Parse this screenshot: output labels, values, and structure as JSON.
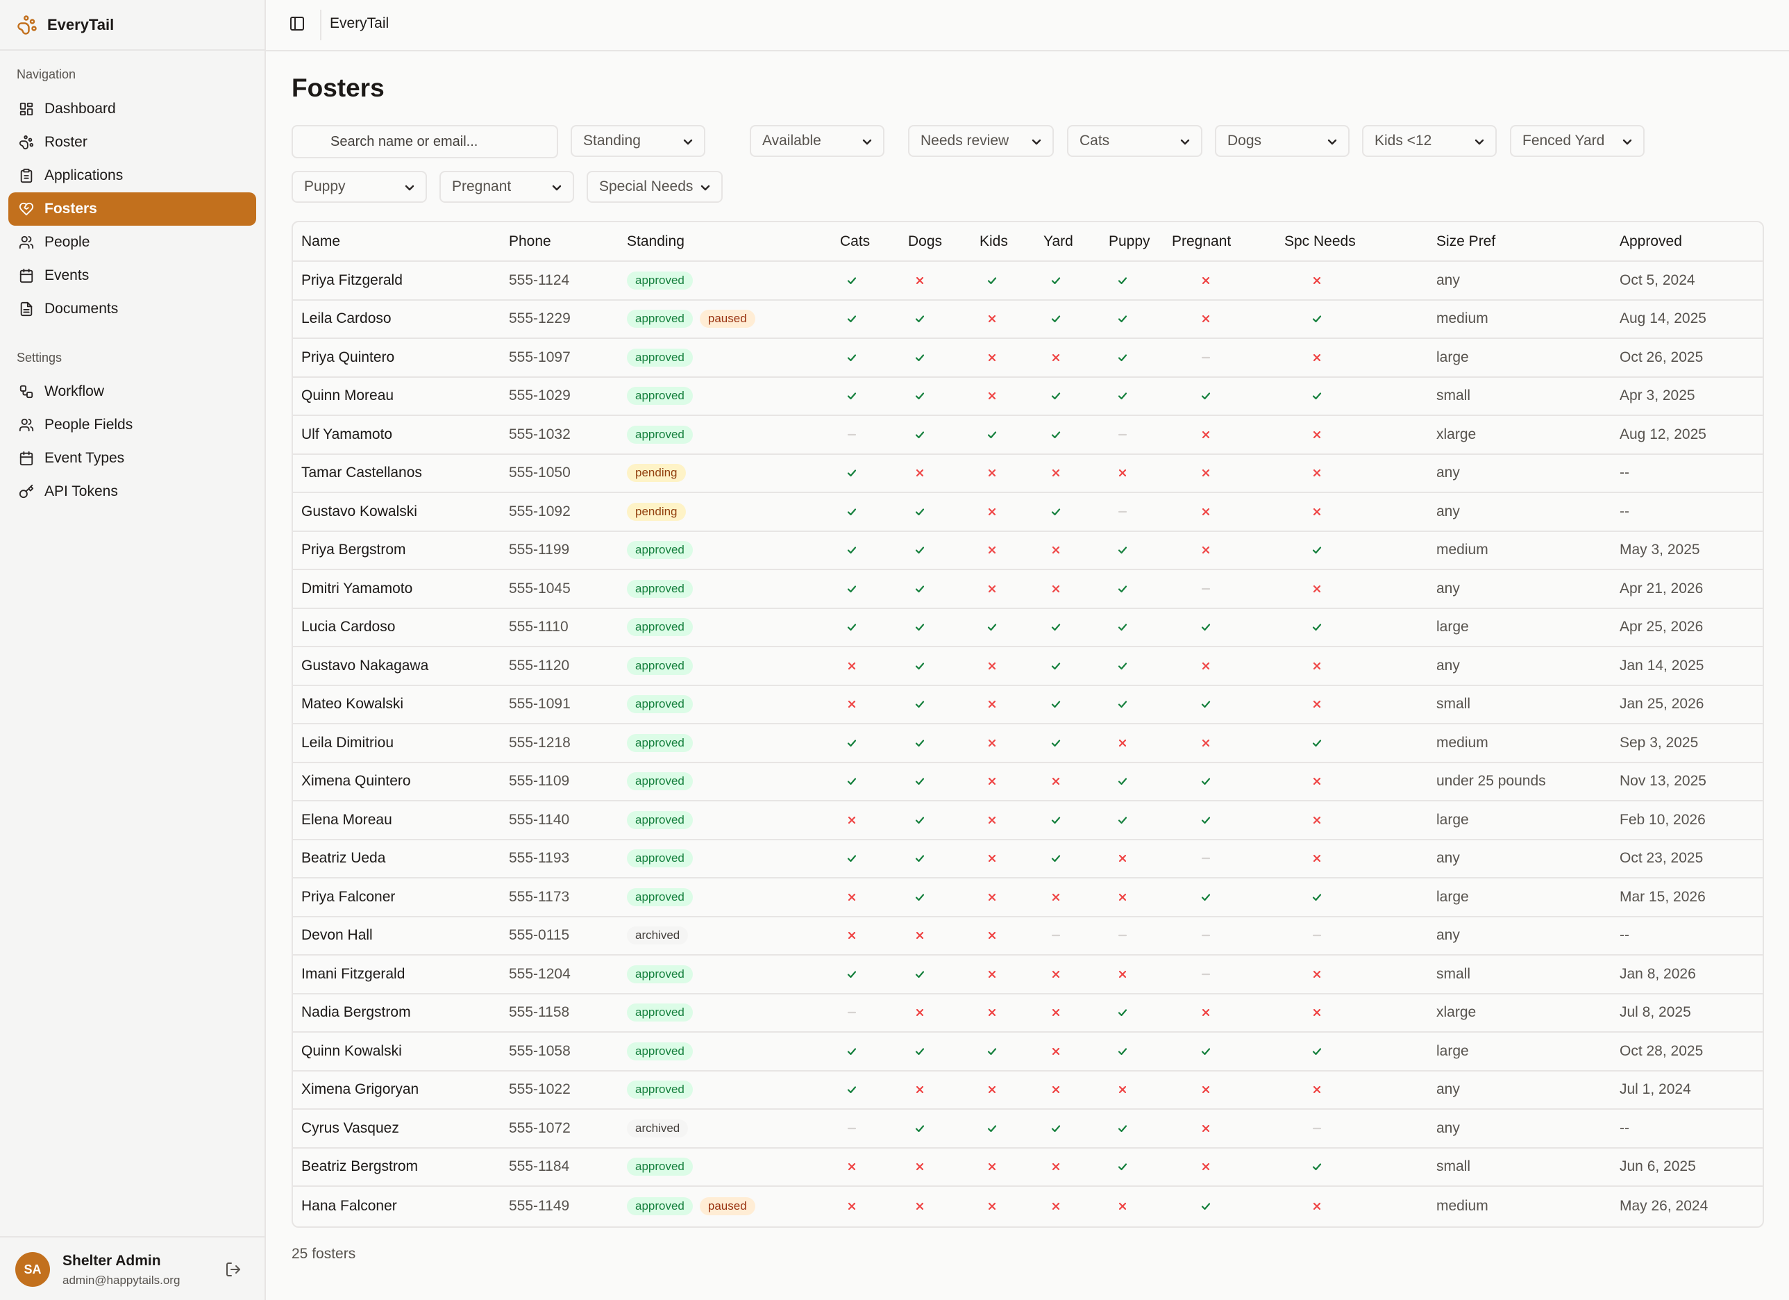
{
  "app": {
    "name": "EveryTail"
  },
  "topbar": {
    "title": "EveryTail"
  },
  "sidebar": {
    "nav_label": "Navigation",
    "nav_items": [
      {
        "label": "Dashboard",
        "icon": "dashboard-icon"
      },
      {
        "label": "Roster",
        "icon": "paw-icon"
      },
      {
        "label": "Applications",
        "icon": "clipboard-icon"
      },
      {
        "label": "Fosters",
        "icon": "heart-icon",
        "active": true
      },
      {
        "label": "People",
        "icon": "people-icon"
      },
      {
        "label": "Events",
        "icon": "calendar-icon"
      },
      {
        "label": "Documents",
        "icon": "document-icon"
      }
    ],
    "settings_label": "Settings",
    "settings_items": [
      {
        "label": "Workflow",
        "icon": "workflow-icon"
      },
      {
        "label": "People Fields",
        "icon": "people-icon"
      },
      {
        "label": "Event Types",
        "icon": "calendar-icon"
      },
      {
        "label": "API Tokens",
        "icon": "key-icon"
      }
    ]
  },
  "user": {
    "initials": "SA",
    "name": "Shelter Admin",
    "email": "admin@happytails.org"
  },
  "page": {
    "title": "Fosters"
  },
  "search": {
    "placeholder": "Search name or email..."
  },
  "filters": [
    "Standing",
    "Available",
    "Needs review",
    "Cats",
    "Dogs",
    "Kids <12",
    "Fenced Yard",
    "Puppy",
    "Pregnant",
    "Special Needs"
  ],
  "table": {
    "columns": [
      "Name",
      "Phone",
      "Standing",
      "Cats",
      "Dogs",
      "Kids",
      "Yard",
      "Puppy",
      "Pregnant",
      "Spc Needs",
      "Size Pref",
      "Approved"
    ],
    "rows": [
      {
        "name": "Priya Fitzgerald",
        "phone": "555-1124",
        "standing": [
          "approved"
        ],
        "flags": [
          "y",
          "n",
          "y",
          "y",
          "y",
          "n",
          "n"
        ],
        "size": "any",
        "approved": "Oct 5, 2024"
      },
      {
        "name": "Leila Cardoso",
        "phone": "555-1229",
        "standing": [
          "approved",
          "paused"
        ],
        "flags": [
          "y",
          "y",
          "n",
          "y",
          "y",
          "n",
          "y"
        ],
        "size": "medium",
        "approved": "Aug 14, 2025"
      },
      {
        "name": "Priya Quintero",
        "phone": "555-1097",
        "standing": [
          "approved"
        ],
        "flags": [
          "y",
          "y",
          "n",
          "n",
          "y",
          "-",
          "n"
        ],
        "size": "large",
        "approved": "Oct 26, 2025"
      },
      {
        "name": "Quinn Moreau",
        "phone": "555-1029",
        "standing": [
          "approved"
        ],
        "flags": [
          "y",
          "y",
          "n",
          "y",
          "y",
          "y",
          "y"
        ],
        "size": "small",
        "approved": "Apr 3, 2025"
      },
      {
        "name": "Ulf Yamamoto",
        "phone": "555-1032",
        "standing": [
          "approved"
        ],
        "flags": [
          "-",
          "y",
          "y",
          "y",
          "-",
          "n",
          "n"
        ],
        "size": "xlarge",
        "approved": "Aug 12, 2025"
      },
      {
        "name": "Tamar Castellanos",
        "phone": "555-1050",
        "standing": [
          "pending"
        ],
        "flags": [
          "y",
          "n",
          "n",
          "n",
          "n",
          "n",
          "n"
        ],
        "size": "any",
        "approved": "--"
      },
      {
        "name": "Gustavo Kowalski",
        "phone": "555-1092",
        "standing": [
          "pending"
        ],
        "flags": [
          "y",
          "y",
          "n",
          "y",
          "-",
          "n",
          "n"
        ],
        "size": "any",
        "approved": "--"
      },
      {
        "name": "Priya Bergstrom",
        "phone": "555-1199",
        "standing": [
          "approved"
        ],
        "flags": [
          "y",
          "y",
          "n",
          "n",
          "y",
          "n",
          "y"
        ],
        "size": "medium",
        "approved": "May 3, 2025"
      },
      {
        "name": "Dmitri Yamamoto",
        "phone": "555-1045",
        "standing": [
          "approved"
        ],
        "flags": [
          "y",
          "y",
          "n",
          "n",
          "y",
          "-",
          "n"
        ],
        "size": "any",
        "approved": "Apr 21, 2026"
      },
      {
        "name": "Lucia Cardoso",
        "phone": "555-1110",
        "standing": [
          "approved"
        ],
        "flags": [
          "y",
          "y",
          "y",
          "y",
          "y",
          "y",
          "y"
        ],
        "size": "large",
        "approved": "Apr 25, 2026"
      },
      {
        "name": "Gustavo Nakagawa",
        "phone": "555-1120",
        "standing": [
          "approved"
        ],
        "flags": [
          "n",
          "y",
          "n",
          "y",
          "y",
          "n",
          "n"
        ],
        "size": "any",
        "approved": "Jan 14, 2025"
      },
      {
        "name": "Mateo Kowalski",
        "phone": "555-1091",
        "standing": [
          "approved"
        ],
        "flags": [
          "n",
          "y",
          "n",
          "y",
          "y",
          "y",
          "n"
        ],
        "size": "small",
        "approved": "Jan 25, 2026"
      },
      {
        "name": "Leila Dimitriou",
        "phone": "555-1218",
        "standing": [
          "approved"
        ],
        "flags": [
          "y",
          "y",
          "n",
          "y",
          "n",
          "n",
          "y"
        ],
        "size": "medium",
        "approved": "Sep 3, 2025"
      },
      {
        "name": "Ximena Quintero",
        "phone": "555-1109",
        "standing": [
          "approved"
        ],
        "flags": [
          "y",
          "y",
          "n",
          "n",
          "y",
          "y",
          "n"
        ],
        "size": "under 25 pounds",
        "approved": "Nov 13, 2025"
      },
      {
        "name": "Elena Moreau",
        "phone": "555-1140",
        "standing": [
          "approved"
        ],
        "flags": [
          "n",
          "y",
          "n",
          "y",
          "y",
          "y",
          "n"
        ],
        "size": "large",
        "approved": "Feb 10, 2026"
      },
      {
        "name": "Beatriz Ueda",
        "phone": "555-1193",
        "standing": [
          "approved"
        ],
        "flags": [
          "y",
          "y",
          "n",
          "y",
          "n",
          "-",
          "n"
        ],
        "size": "any",
        "approved": "Oct 23, 2025"
      },
      {
        "name": "Priya Falconer",
        "phone": "555-1173",
        "standing": [
          "approved"
        ],
        "flags": [
          "n",
          "y",
          "n",
          "n",
          "n",
          "y",
          "y"
        ],
        "size": "large",
        "approved": "Mar 15, 2026"
      },
      {
        "name": "Devon Hall",
        "phone": "555-0115",
        "standing": [
          "archived"
        ],
        "flags": [
          "n",
          "n",
          "n",
          "-",
          "-",
          "-",
          "-"
        ],
        "size": "any",
        "approved": "--"
      },
      {
        "name": "Imani Fitzgerald",
        "phone": "555-1204",
        "standing": [
          "approved"
        ],
        "flags": [
          "y",
          "y",
          "n",
          "n",
          "n",
          "-",
          "n"
        ],
        "size": "small",
        "approved": "Jan 8, 2026"
      },
      {
        "name": "Nadia Bergstrom",
        "phone": "555-1158",
        "standing": [
          "approved"
        ],
        "flags": [
          "-",
          "n",
          "n",
          "n",
          "y",
          "n",
          "n"
        ],
        "size": "xlarge",
        "approved": "Jul 8, 2025"
      },
      {
        "name": "Quinn Kowalski",
        "phone": "555-1058",
        "standing": [
          "approved"
        ],
        "flags": [
          "y",
          "y",
          "y",
          "n",
          "y",
          "y",
          "y"
        ],
        "size": "large",
        "approved": "Oct 28, 2025"
      },
      {
        "name": "Ximena Grigoryan",
        "phone": "555-1022",
        "standing": [
          "approved"
        ],
        "flags": [
          "y",
          "n",
          "n",
          "n",
          "n",
          "n",
          "n"
        ],
        "size": "any",
        "approved": "Jul 1, 2024"
      },
      {
        "name": "Cyrus Vasquez",
        "phone": "555-1072",
        "standing": [
          "archived"
        ],
        "flags": [
          "-",
          "y",
          "y",
          "y",
          "y",
          "n",
          "-"
        ],
        "size": "any",
        "approved": "--"
      },
      {
        "name": "Beatriz Bergstrom",
        "phone": "555-1184",
        "standing": [
          "approved"
        ],
        "flags": [
          "n",
          "n",
          "n",
          "n",
          "y",
          "n",
          "y"
        ],
        "size": "small",
        "approved": "Jun 6, 2025"
      },
      {
        "name": "Hana Falconer",
        "phone": "555-1149",
        "standing": [
          "approved",
          "paused"
        ],
        "flags": [
          "n",
          "n",
          "n",
          "n",
          "n",
          "y",
          "n"
        ],
        "size": "medium",
        "approved": "May 26, 2024"
      }
    ]
  },
  "footer": {
    "count_text": "25 fosters"
  },
  "colors": {
    "accent": "#c2701d",
    "yes": "#15803d",
    "no": "#ef4444",
    "na": "#d6d3d1"
  }
}
